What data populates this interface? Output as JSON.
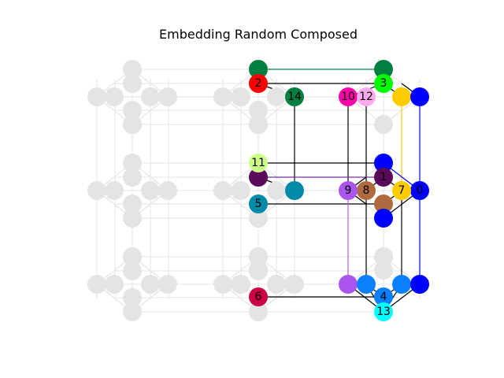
{
  "title": "Embedding Random Composed",
  "highlight_edges": [
    [
      "2",
      "14",
      "#008040"
    ],
    [
      "11",
      "1",
      "#7030a0"
    ],
    [
      "9",
      "-",
      "#b060e0"
    ],
    [
      "7",
      "-",
      "#ffcc00"
    ],
    [
      "0",
      "-",
      "#0000ff"
    ]
  ],
  "nodes": [
    {
      "label": "0",
      "color": "#0000ff"
    },
    {
      "label": "1",
      "color": "#5a0a5a"
    },
    {
      "label": "2",
      "color": "#ff0000"
    },
    {
      "label": "3",
      "color": "#00ff00"
    },
    {
      "label": "4",
      "color": "#0a80ff"
    },
    {
      "label": "5",
      "color": "#008ca8"
    },
    {
      "label": "6",
      "color": "#cc0044"
    },
    {
      "label": "7",
      "color": "#ffcc00"
    },
    {
      "label": "8",
      "color": "#b06a40"
    },
    {
      "label": "9",
      "color": "#aa55ee"
    },
    {
      "label": "10",
      "color": "#ff00aa"
    },
    {
      "label": "11",
      "color": "#ccff88"
    },
    {
      "label": "12",
      "color": "#ffaaee"
    },
    {
      "label": "13",
      "color": "#00ffff"
    },
    {
      "label": "14",
      "color": "#008040"
    }
  ]
}
